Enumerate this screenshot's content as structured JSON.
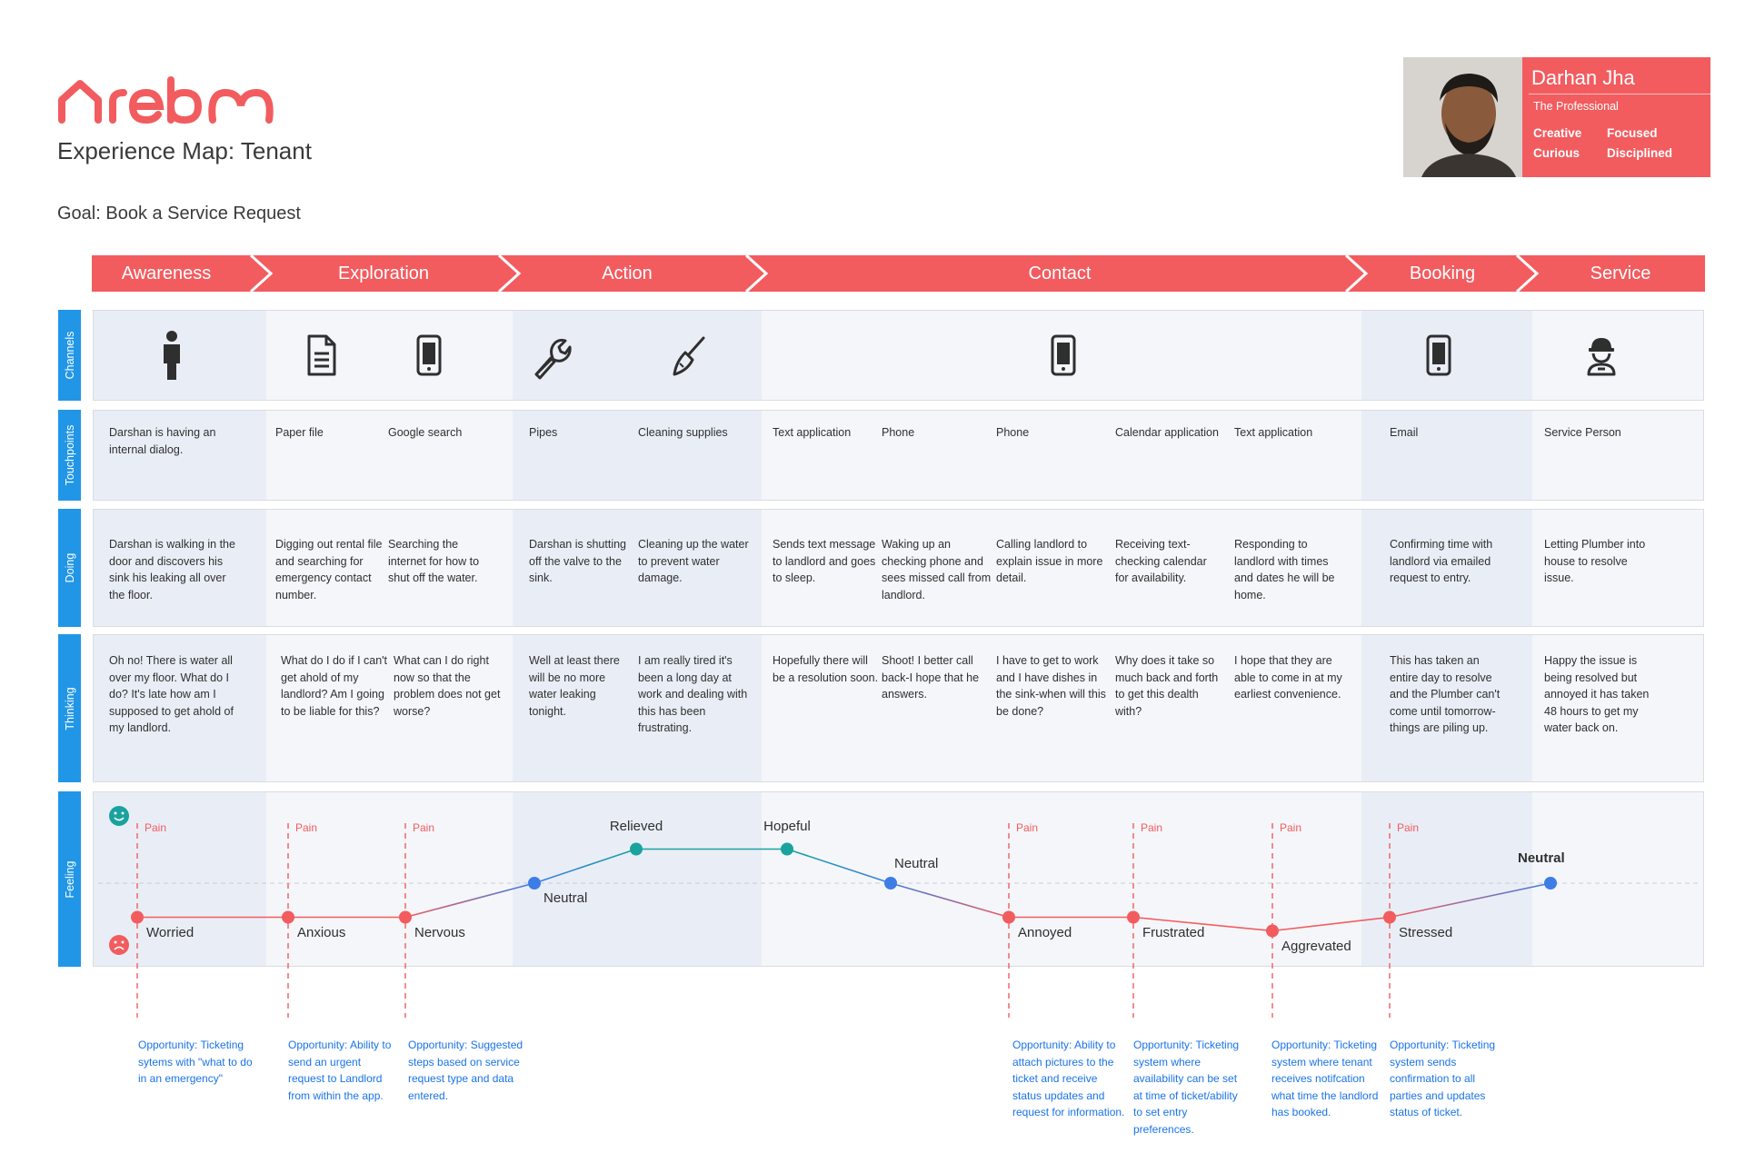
{
  "brand": {
    "name": "rebo",
    "color": "#f25c5f"
  },
  "header": {
    "title": "Experience Map: Tenant",
    "goal": "Goal: Book a Service Request"
  },
  "persona": {
    "name": "Darhan Jha",
    "role": "The Professional",
    "traits": [
      "Creative",
      "Focused",
      "Curious",
      "Disciplined"
    ],
    "photo": "persona-photo"
  },
  "stages": [
    "Awareness",
    "Exploration",
    "Action",
    "Contact",
    "Booking",
    "Service"
  ],
  "rows": [
    "Channels",
    "Touchpoints",
    "Doing",
    "Thinking",
    "Feeling"
  ],
  "colors": {
    "stage": "#f25c5f",
    "tab": "#2196e7",
    "row_bg": "#f4f6f9",
    "shade": "#e9eef6",
    "positive": "#1aa39e",
    "neutral": "#3f7de6",
    "negative": "#f25c5f",
    "opportunity": "#1a73e8"
  },
  "channels": [
    "person-icon",
    "document-icon",
    "mobile-icon",
    "wrench-icon",
    "brush-icon",
    "mobile-icon",
    "mobile-icon",
    "worker-icon"
  ],
  "touchpoints": [
    "Darshan is having an internal dialog.",
    "Paper file",
    "Google search",
    "Pipes",
    "Cleaning supplies",
    "Text application",
    "Phone",
    "Phone",
    "Calendar application",
    "Text application",
    "Email",
    "Service Person"
  ],
  "doing": [
    "Darshan is walking in the door and discovers his sink his leaking all over the floor.",
    "Digging out rental file and searching for emergency contact number.",
    "Searching the internet for how to shut off the water.",
    "Darshan is shutting off the valve to the sink.",
    "Cleaning up the water to prevent water damage.",
    "Sends text message to landlord and goes to sleep.",
    "Waking up an checking phone and sees missed call from landlord.",
    "Calling landlord to explain issue in more detail.",
    "Receiving text-checking calendar for availability.",
    "Responding to landlord with times and dates he will be home.",
    "Confirming time with landlord via emailed request to entry.",
    "Letting Plumber into house to resolve issue."
  ],
  "thinking": [
    "Oh no! There is water all over my floor. What do I do? It's late how am I supposed to get ahold of my landlord.",
    "What do I do if I can't get ahold of my landlord? Am I going to be liable for this?",
    "What can I do right now so that the problem does not get worse?",
    "Well at least there will be no more water leaking tonight.",
    "I am really tired it's been a long day at work and dealing with this has been frustrating.",
    "Hopefully there will be a resolution soon.",
    "Shoot! I better call back-I hope that he answers.",
    "I have to get to work and I have dishes in the sink-when will this be done?",
    "Why does it take so much back and forth to get this dealth with?",
    "I hope that they are able to come in at my earliest convenience.",
    "This has taken an entire day to resolve and the Plumber can't come until tomorrow-things are piling up.",
    "Happy the issue is being resolved but annoyed it has taken 48 hours to get my water back on."
  ],
  "feeling": {
    "points": [
      {
        "label": "Worried",
        "level": -1,
        "pain": true
      },
      {
        "label": "Anxious",
        "level": -1,
        "pain": true
      },
      {
        "label": "Nervous",
        "level": -1,
        "pain": true
      },
      {
        "label": "Neutral",
        "level": 0,
        "pain": false
      },
      {
        "label": "Relieved",
        "level": 1,
        "pain": false
      },
      {
        "label": "Hopeful",
        "level": 1,
        "pain": false
      },
      {
        "label": "Neutral",
        "level": 0,
        "pain": false
      },
      {
        "label": "Annoyed",
        "level": -1,
        "pain": true
      },
      {
        "label": "Frustrated",
        "level": -1,
        "pain": true
      },
      {
        "label": "Aggrevated",
        "level": -1.4,
        "pain": true
      },
      {
        "label": "Stressed",
        "level": -1,
        "pain": true
      },
      {
        "label": "Neutral",
        "level": 0,
        "pain": false
      }
    ],
    "pain_label": "Pain"
  },
  "opportunities": [
    "Opportunity: Ticketing sytems with \"what to do in an emergency\"",
    "Opportunity: Ability to send an urgent request to Landlord from within the app.",
    "Opportunity: Suggested steps based on service request type and data entered.",
    "Opportunity: Ability to attach pictures to the ticket and receive status updates and request for information.",
    "Opportunity: Ticketing system where availability can be set at time of ticket/ability to set entry preferences.",
    "Opportunity: Ticketing system where tenant receives notifcation what time the landlord has booked.",
    "Opportunity: Ticketing system sends confirmation to all parties and updates status of ticket."
  ]
}
